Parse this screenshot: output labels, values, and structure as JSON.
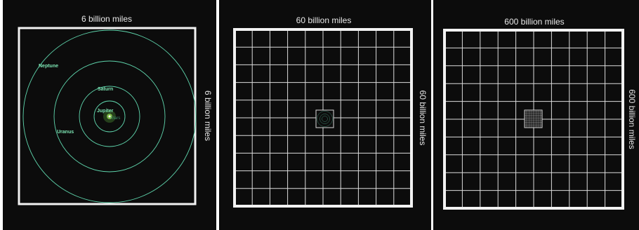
{
  "panels": [
    {
      "top_label": "6 billion miles",
      "side_label": "6 billion miles",
      "planets": [
        "Neptune",
        "Saturn",
        "Jupiter",
        "Uranus",
        "Mars"
      ]
    },
    {
      "top_label": "60 billion miles",
      "side_label": "60 billion miles"
    },
    {
      "top_label": "600 billion miles",
      "side_label": "600 billion miles"
    }
  ],
  "colors": {
    "background": "#0c0c0c",
    "frame": "#f2f2f2",
    "grid": "#dcdcdc",
    "orbit": "#5fd6ad",
    "planet_label": "#7de6b4"
  }
}
